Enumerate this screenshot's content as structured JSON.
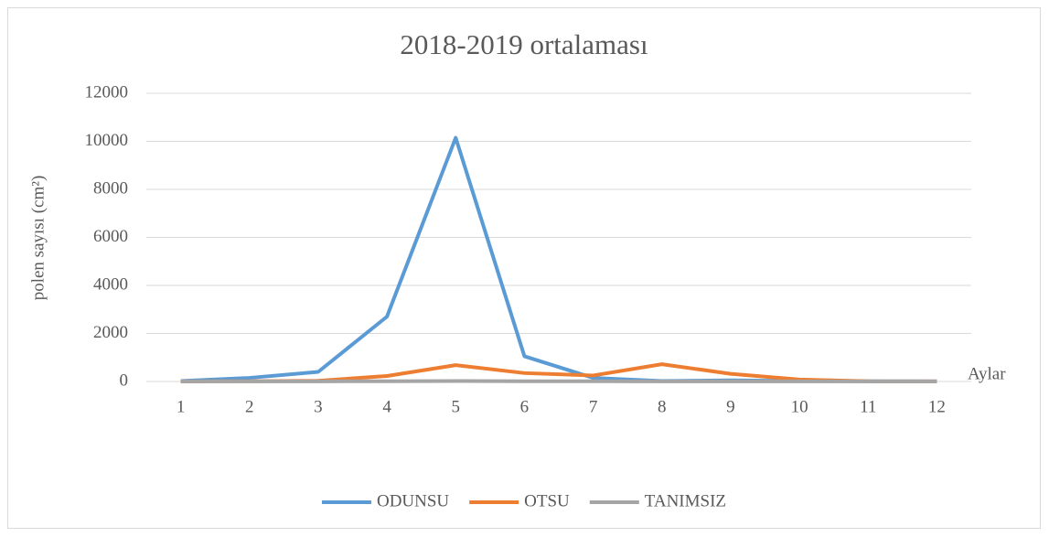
{
  "chart_data": {
    "type": "line",
    "title": "2018-2019 ortalaması",
    "ylabel": "polen sayısı (cm²)",
    "xlabel": "Aylar",
    "categories": [
      "1",
      "2",
      "3",
      "4",
      "5",
      "6",
      "7",
      "8",
      "9",
      "10",
      "11",
      "12"
    ],
    "series": [
      {
        "name": "ODUNSU",
        "color": "#5b9bd5",
        "values": [
          20,
          150,
          400,
          2700,
          10150,
          1050,
          150,
          20,
          50,
          20,
          10,
          5
        ]
      },
      {
        "name": "OTSU",
        "color": "#ed7d31",
        "values": [
          0,
          10,
          30,
          230,
          680,
          350,
          250,
          720,
          320,
          80,
          10,
          5
        ]
      },
      {
        "name": "TANIMSIZ",
        "color": "#a5a5a5",
        "values": [
          5,
          5,
          5,
          10,
          20,
          10,
          10,
          5,
          5,
          5,
          5,
          5
        ]
      }
    ],
    "ylim": [
      0,
      12000
    ],
    "yticks": [
      0,
      2000,
      4000,
      6000,
      8000,
      10000,
      12000
    ],
    "grid": true,
    "legend": "bottom"
  }
}
